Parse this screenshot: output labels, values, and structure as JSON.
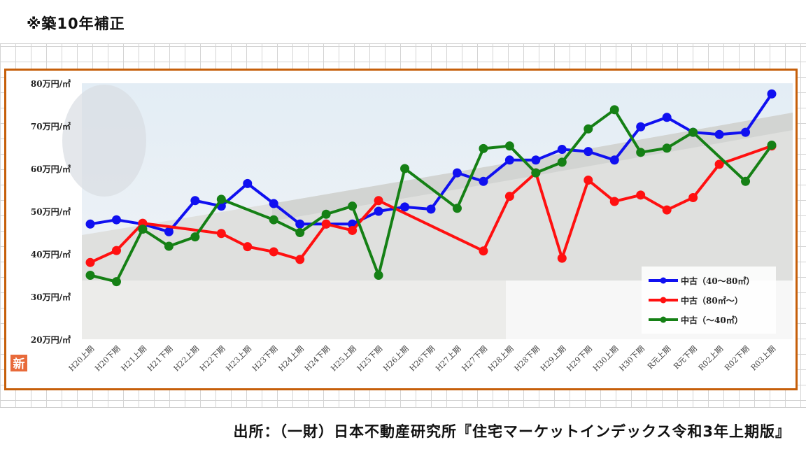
{
  "note": "※築10年補正",
  "source": "出所：（一財）日本不動産研究所『住宅マーケットインデックス令和3年上期版』",
  "logo_text": "新",
  "colors": {
    "frame": "#c65f0a",
    "blue": "#1010f0",
    "red": "#ff1010",
    "green": "#158015"
  },
  "chart_data": {
    "type": "line",
    "ylim": [
      20,
      80
    ],
    "y_ticks": [
      20,
      30,
      40,
      50,
      60,
      70,
      80
    ],
    "y_tick_labels": [
      "20万円/㎡",
      "30万円/㎡",
      "40万円/㎡",
      "50万円/㎡",
      "60万円/㎡",
      "70万円/㎡",
      "80万円/㎡"
    ],
    "categories": [
      "H20上期",
      "H20下期",
      "H21上期",
      "H21下期",
      "H22上期",
      "H22下期",
      "H23上期",
      "H23下期",
      "H24上期",
      "H24下期",
      "H25上期",
      "H25下期",
      "H26上期",
      "H26下期",
      "H27上期",
      "H27下期",
      "H28上期",
      "H28下期",
      "H29上期",
      "H29下期",
      "H30上期",
      "H30下期",
      "R元上期",
      "R元下期",
      "R02上期",
      "R02下期",
      "R03上期"
    ],
    "legend_position": "bottom-right",
    "series": [
      {
        "name": "中古（40～80㎡）",
        "color": "#1010f0",
        "values": [
          47.0,
          48.0,
          47.0,
          45.2,
          52.5,
          51.2,
          56.5,
          51.8,
          47.0,
          47.0,
          47.0,
          50.0,
          51.0,
          50.5,
          59.0,
          57.0,
          62.0,
          62.0,
          64.5,
          64.0,
          62.0,
          69.8,
          72.0,
          68.5,
          68.0,
          68.5,
          77.5
        ]
      },
      {
        "name": "中古（80㎡～）",
        "color": "#ff1010",
        "values": [
          38.0,
          40.8,
          47.2,
          null,
          null,
          44.8,
          41.7,
          40.5,
          38.7,
          47.0,
          45.5,
          52.5,
          null,
          null,
          null,
          40.7,
          53.5,
          59.0,
          39.0,
          57.3,
          52.3,
          53.8,
          50.3,
          53.2,
          61.0,
          null,
          65.3
        ]
      },
      {
        "name": "中古（～40㎡）",
        "color": "#158015",
        "values": [
          35.0,
          33.5,
          45.8,
          41.8,
          44.0,
          52.8,
          null,
          48.0,
          45.0,
          49.3,
          51.2,
          35.0,
          60.0,
          null,
          50.7,
          64.7,
          65.3,
          59.0,
          61.5,
          69.3,
          73.8,
          63.8,
          64.8,
          68.5,
          null,
          57.0,
          65.5
        ]
      }
    ]
  }
}
